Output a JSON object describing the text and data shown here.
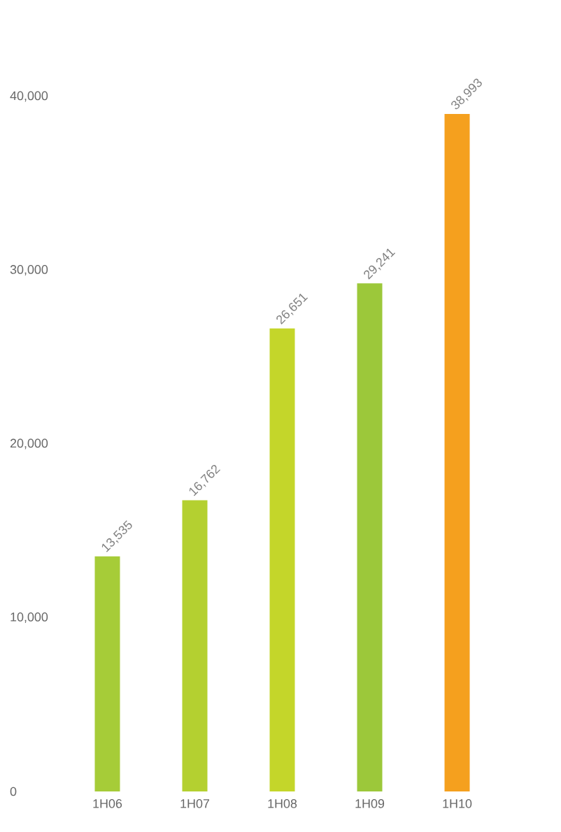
{
  "chart_data": {
    "type": "bar",
    "categories": [
      "1H06",
      "1H07",
      "1H08",
      "1H09",
      "1H10"
    ],
    "values": [
      13535,
      16762,
      26651,
      29241,
      38993
    ],
    "value_labels": [
      "13,535",
      "16,762",
      "26,651",
      "29,241",
      "38,993"
    ],
    "colors": [
      "#a6cc38",
      "#b4d030",
      "#c4d62a",
      "#9cc83a",
      "#f5a01e"
    ],
    "ylim": [
      0,
      40000
    ],
    "yticks": [
      {
        "value": 0,
        "label": "0"
      },
      {
        "value": 10000,
        "label": "10,000"
      },
      {
        "value": 20000,
        "label": "20,000"
      },
      {
        "value": 30000,
        "label": "30,000"
      },
      {
        "value": 40000,
        "label": "40,000"
      }
    ],
    "grid": false
  }
}
